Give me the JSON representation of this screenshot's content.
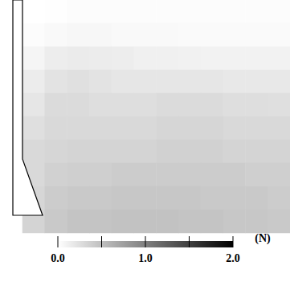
{
  "chart_data": {
    "type": "heatmap",
    "force_grid": [
      [
        0.0,
        0.01,
        0.02,
        0.02,
        0.02,
        0.02,
        0.02,
        0.02,
        0.02,
        0.02,
        0.02,
        0.02
      ],
      [
        0.02,
        0.05,
        0.06,
        0.06,
        0.05,
        0.05,
        0.05,
        0.04,
        0.04,
        0.04,
        0.04,
        0.04
      ],
      [
        0.08,
        0.14,
        0.16,
        0.15,
        0.14,
        0.12,
        0.12,
        0.11,
        0.1,
        0.1,
        0.1,
        0.1
      ],
      [
        0.15,
        0.22,
        0.24,
        0.22,
        0.2,
        0.2,
        0.2,
        0.2,
        0.2,
        0.18,
        0.18,
        0.18
      ],
      [
        0.2,
        0.28,
        0.28,
        0.26,
        0.26,
        0.26,
        0.28,
        0.28,
        0.28,
        0.26,
        0.26,
        0.25
      ],
      [
        0.25,
        0.3,
        0.3,
        0.3,
        0.3,
        0.3,
        0.32,
        0.32,
        0.32,
        0.3,
        0.3,
        0.3
      ],
      [
        0.3,
        0.32,
        0.34,
        0.34,
        0.34,
        0.34,
        0.36,
        0.36,
        0.36,
        0.34,
        0.34,
        0.34
      ],
      [
        0.3,
        0.36,
        0.38,
        0.38,
        0.4,
        0.4,
        0.4,
        0.4,
        0.4,
        0.4,
        0.38,
        0.38
      ],
      [
        0.32,
        0.4,
        0.42,
        0.42,
        0.44,
        0.44,
        0.44,
        0.44,
        0.42,
        0.42,
        0.42,
        0.4
      ],
      [
        0.34,
        0.42,
        0.46,
        0.46,
        0.48,
        0.48,
        0.48,
        0.46,
        0.46,
        0.44,
        0.44,
        0.42
      ]
    ],
    "colorbar": {
      "range": [
        0,
        2
      ],
      "ticks": [
        0,
        0.5,
        1,
        1.5,
        2
      ],
      "tick_labels": [
        {
          "value": 0,
          "label": "0.0"
        },
        {
          "value": 1,
          "label": "1.0"
        },
        {
          "value": 2,
          "label": "2.0"
        }
      ],
      "unit": "(N)"
    },
    "tick_labels": false
  }
}
